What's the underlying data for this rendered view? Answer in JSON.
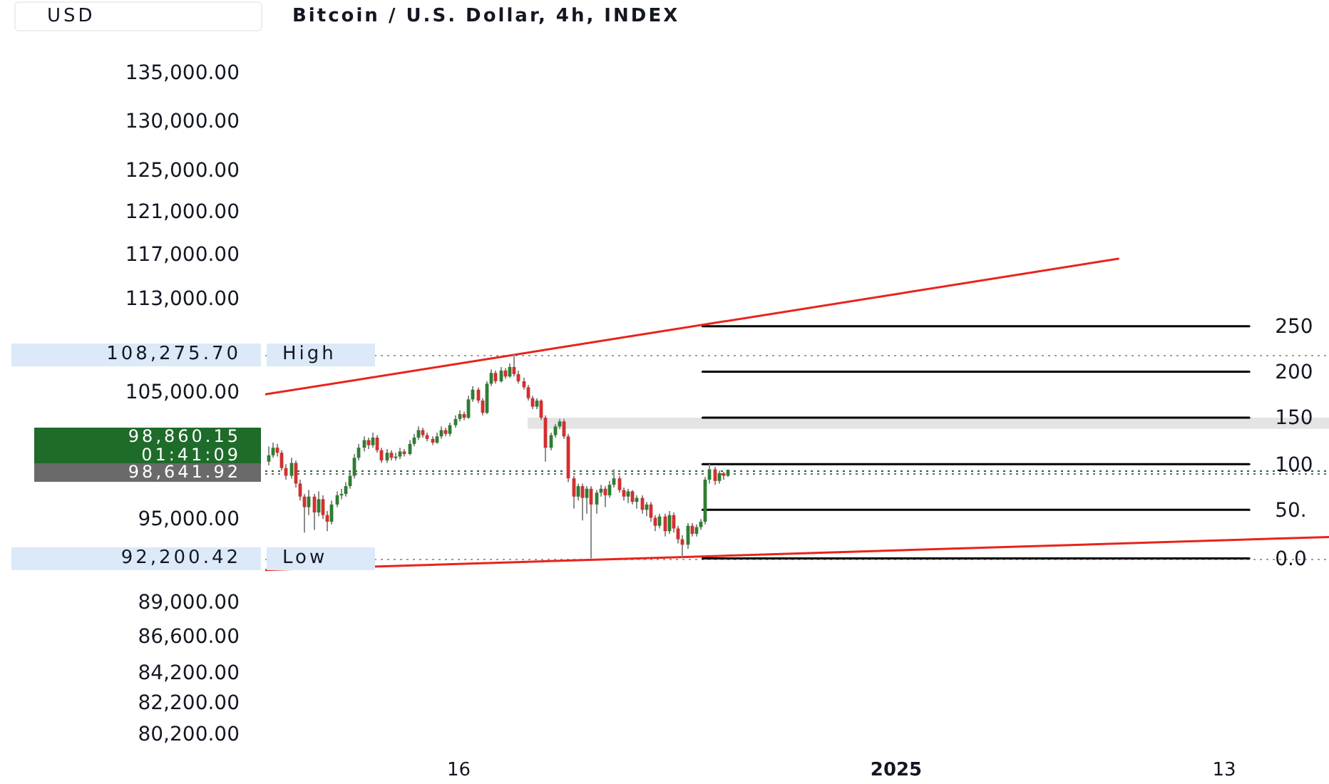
{
  "chart_data": {
    "type": "candlestick",
    "title": "Bitcoin / U.S. Dollar, 4h, INDEX",
    "ylabel": "USD",
    "log": true,
    "xlim": [
      "2024-12-08T22:00",
      "2025-01-16T20:00"
    ],
    "xticks": [
      {
        "value": "2024-12-16",
        "label": "16"
      },
      {
        "value": "2025-01-01",
        "label": "2025"
      },
      {
        "value": "2025-01-13",
        "label": "13"
      }
    ],
    "ylim": [
      80200,
      135000
    ],
    "yticks": [
      {
        "value": 80200,
        "label": "80,200.00"
      },
      {
        "value": 82200,
        "label": "82,200.00"
      },
      {
        "value": 84200,
        "label": "84,200.00"
      },
      {
        "value": 86600,
        "label": "86,600.00"
      },
      {
        "value": 89000,
        "label": "89,000.00"
      },
      {
        "value": 95000,
        "label": "95,000.00"
      },
      {
        "value": 105000,
        "label": "105,000.00"
      },
      {
        "value": 113000,
        "label": "113,000.00"
      },
      {
        "value": 117000,
        "label": "117,000.00"
      },
      {
        "value": 121000,
        "label": "121,000.00"
      },
      {
        "value": 125000,
        "label": "125,000.00"
      },
      {
        "value": 130000,
        "label": "130,000.00"
      },
      {
        "value": 135000,
        "label": "135,000.00"
      }
    ],
    "x": [
      "2024-12-09T00:00",
      "2024-12-09T04:00",
      "2024-12-09T08:00",
      "2024-12-09T12:00",
      "2024-12-09T16:00",
      "2024-12-09T20:00",
      "2024-12-10T00:00",
      "2024-12-10T04:00",
      "2024-12-10T08:00",
      "2024-12-10T12:00",
      "2024-12-10T16:00",
      "2024-12-10T20:00",
      "2024-12-11T00:00",
      "2024-12-11T04:00",
      "2024-12-11T08:00",
      "2024-12-11T12:00",
      "2024-12-11T16:00",
      "2024-12-11T20:00",
      "2024-12-12T00:00",
      "2024-12-12T04:00",
      "2024-12-12T08:00",
      "2024-12-12T12:00",
      "2024-12-12T16:00",
      "2024-12-12T20:00",
      "2024-12-13T00:00",
      "2024-12-13T04:00",
      "2024-12-13T08:00",
      "2024-12-13T12:00",
      "2024-12-13T16:00",
      "2024-12-13T20:00",
      "2024-12-14T00:00",
      "2024-12-14T04:00",
      "2024-12-14T08:00",
      "2024-12-14T12:00",
      "2024-12-14T16:00",
      "2024-12-14T20:00",
      "2024-12-15T00:00",
      "2024-12-15T04:00",
      "2024-12-15T08:00",
      "2024-12-15T12:00",
      "2024-12-15T16:00",
      "2024-12-15T20:00",
      "2024-12-16T00:00",
      "2024-12-16T04:00",
      "2024-12-16T08:00",
      "2024-12-16T12:00",
      "2024-12-16T16:00",
      "2024-12-16T20:00",
      "2024-12-17T00:00",
      "2024-12-17T04:00",
      "2024-12-17T08:00",
      "2024-12-17T12:00",
      "2024-12-17T16:00",
      "2024-12-17T20:00",
      "2024-12-18T00:00",
      "2024-12-18T04:00",
      "2024-12-18T08:00",
      "2024-12-18T12:00",
      "2024-12-18T16:00",
      "2024-12-18T20:00",
      "2024-12-19T00:00",
      "2024-12-19T04:00",
      "2024-12-19T08:00",
      "2024-12-19T12:00",
      "2024-12-19T16:00",
      "2024-12-19T20:00",
      "2024-12-20T00:00",
      "2024-12-20T04:00",
      "2024-12-20T08:00",
      "2024-12-20T12:00",
      "2024-12-20T16:00",
      "2024-12-20T20:00",
      "2024-12-21T00:00",
      "2024-12-21T04:00",
      "2024-12-21T08:00",
      "2024-12-21T12:00",
      "2024-12-21T16:00",
      "2024-12-21T20:00",
      "2024-12-22T00:00",
      "2024-12-22T04:00",
      "2024-12-22T08:00",
      "2024-12-22T12:00",
      "2024-12-22T16:00",
      "2024-12-22T20:00",
      "2024-12-23T00:00",
      "2024-12-23T04:00",
      "2024-12-23T08:00",
      "2024-12-23T12:00",
      "2024-12-23T16:00",
      "2024-12-23T20:00",
      "2024-12-24T00:00",
      "2024-12-24T04:00",
      "2024-12-24T08:00",
      "2024-12-24T12:00",
      "2024-12-24T16:00",
      "2024-12-24T20:00",
      "2024-12-25T00:00",
      "2024-12-25T04:00",
      "2024-12-25T08:00",
      "2024-12-25T12:00",
      "2024-12-25T16:00",
      "2024-12-25T20:00"
    ],
    "ohlc": [
      [
        99500,
        100700,
        99200,
        100000
      ],
      [
        100000,
        101000,
        99800,
        100600
      ],
      [
        100600,
        100900,
        99900,
        100200
      ],
      [
        100200,
        100400,
        98800,
        99000
      ],
      [
        99000,
        99300,
        98100,
        98400
      ],
      [
        98400,
        99800,
        98200,
        99400
      ],
      [
        99400,
        99600,
        97500,
        97800
      ],
      [
        97800,
        98100,
        96500,
        96800
      ],
      [
        96800,
        97000,
        94100,
        96000
      ],
      [
        96000,
        97300,
        95400,
        96800
      ],
      [
        96800,
        97000,
        94300,
        95600
      ],
      [
        95600,
        97200,
        95300,
        96600
      ],
      [
        96600,
        96900,
        95100,
        95400
      ],
      [
        95400,
        95700,
        94200,
        94900
      ],
      [
        94900,
        96500,
        94700,
        96200
      ],
      [
        96200,
        97200,
        96000,
        96900
      ],
      [
        96900,
        97400,
        96600,
        97000
      ],
      [
        97000,
        97900,
        96800,
        97600
      ],
      [
        97600,
        98700,
        97400,
        98400
      ],
      [
        98400,
        100100,
        98200,
        99800
      ],
      [
        99800,
        100900,
        99600,
        100600
      ],
      [
        100600,
        101500,
        100300,
        101200
      ],
      [
        101200,
        101400,
        100500,
        100800
      ],
      [
        100800,
        101800,
        100600,
        101400
      ],
      [
        101400,
        101600,
        100200,
        100400
      ],
      [
        100400,
        100600,
        99400,
        99600
      ],
      [
        99600,
        100500,
        99400,
        100200
      ],
      [
        100200,
        100400,
        99600,
        99800
      ],
      [
        99800,
        100200,
        99600,
        99900
      ],
      [
        99900,
        100600,
        99700,
        100300
      ],
      [
        100300,
        100500,
        99900,
        100100
      ],
      [
        100100,
        101200,
        100000,
        100900
      ],
      [
        100900,
        101700,
        100700,
        101400
      ],
      [
        101400,
        102300,
        101200,
        102000
      ],
      [
        102000,
        102200,
        101400,
        101600
      ],
      [
        101600,
        101800,
        101100,
        101300
      ],
      [
        101300,
        101500,
        100800,
        101000
      ],
      [
        101000,
        101800,
        100900,
        101500
      ],
      [
        101500,
        102300,
        101300,
        102000
      ],
      [
        102000,
        102200,
        101500,
        101700
      ],
      [
        101700,
        102600,
        101500,
        102400
      ],
      [
        102400,
        103200,
        102200,
        102900
      ],
      [
        102900,
        103600,
        102700,
        103300
      ],
      [
        103300,
        103500,
        102800,
        103000
      ],
      [
        103000,
        104800,
        102900,
        104500
      ],
      [
        104500,
        105600,
        104300,
        105300
      ],
      [
        105300,
        105500,
        104200,
        104400
      ],
      [
        104400,
        104600,
        103200,
        103400
      ],
      [
        103400,
        106000,
        103300,
        105800
      ],
      [
        105800,
        107000,
        105600,
        106700
      ],
      [
        106700,
        106900,
        105800,
        106000
      ],
      [
        106000,
        107200,
        105900,
        106900
      ],
      [
        106900,
        107100,
        106200,
        106400
      ],
      [
        106400,
        107500,
        106300,
        107200
      ],
      [
        107200,
        108275.7,
        106400,
        106600
      ],
      [
        106600,
        106900,
        105800,
        106000
      ],
      [
        106000,
        106300,
        105300,
        105500
      ],
      [
        105500,
        105700,
        104400,
        104600
      ],
      [
        104600,
        104800,
        103700,
        103900
      ],
      [
        103900,
        104600,
        103700,
        104400
      ],
      [
        104400,
        104500,
        102800,
        103000
      ],
      [
        103000,
        103200,
        99500,
        100600
      ],
      [
        100600,
        101800,
        100400,
        101600
      ],
      [
        101600,
        102500,
        101400,
        102300
      ],
      [
        102300,
        102900,
        102100,
        102700
      ],
      [
        102700,
        102900,
        101300,
        101500
      ],
      [
        101500,
        101700,
        97900,
        98200
      ],
      [
        98200,
        98400,
        95900,
        96800
      ],
      [
        96800,
        97800,
        96500,
        97600
      ],
      [
        97600,
        97800,
        95000,
        96700
      ],
      [
        96700,
        97600,
        95500,
        97400
      ],
      [
        97400,
        97600,
        92200.42,
        96200
      ],
      [
        96200,
        97300,
        95500,
        97100
      ],
      [
        97100,
        97700,
        96800,
        97400
      ],
      [
        97400,
        97600,
        96000,
        96900
      ],
      [
        96900,
        98000,
        96700,
        97700
      ],
      [
        97700,
        98900,
        97500,
        98200
      ],
      [
        98200,
        98400,
        97100,
        97300
      ],
      [
        97300,
        97500,
        96500,
        96800
      ],
      [
        96800,
        97400,
        96300,
        97200
      ],
      [
        97200,
        97300,
        96200,
        96400
      ],
      [
        96400,
        96900,
        95900,
        96700
      ],
      [
        96700,
        96900,
        95500,
        95800
      ],
      [
        95800,
        96400,
        95300,
        96200
      ],
      [
        96200,
        96400,
        94900,
        95200
      ],
      [
        95200,
        95400,
        94200,
        94600
      ],
      [
        94600,
        95500,
        94400,
        95300
      ],
      [
        95300,
        95500,
        93800,
        94200
      ],
      [
        94200,
        95700,
        94000,
        95400
      ],
      [
        95400,
        95600,
        94100,
        94400
      ],
      [
        94400,
        94600,
        93300,
        93600
      ],
      [
        93600,
        93900,
        92300,
        93200
      ],
      [
        93200,
        94800,
        92900,
        94600
      ],
      [
        94600,
        94800,
        93800,
        94000
      ],
      [
        94000,
        94700,
        93800,
        94500
      ],
      [
        94500,
        95100,
        94300,
        94900
      ],
      [
        94900,
        98300,
        94700,
        98100
      ],
      [
        98100,
        99300,
        97800,
        98900
      ],
      [
        98900,
        99100,
        97700,
        98000
      ],
      [
        98000,
        98800,
        97800,
        98600
      ],
      [
        98600,
        98700,
        98100,
        98400
      ],
      [
        98400,
        98900,
        98300,
        98860.15
      ]
    ],
    "colors": [
      "#2e7d32",
      "#2e7d32",
      "#d32f2f",
      "#d32f2f",
      "#d32f2f",
      "#2e7d32",
      "#d32f2f",
      "#d32f2f",
      "#d32f2f",
      "#2e7d32",
      "#d32f2f",
      "#2e7d32",
      "#d32f2f",
      "#d32f2f",
      "#2e7d32",
      "#2e7d32",
      "#2e7d32",
      "#2e7d32",
      "#2e7d32",
      "#2e7d32",
      "#2e7d32",
      "#2e7d32",
      "#d32f2f",
      "#2e7d32",
      "#d32f2f",
      "#d32f2f",
      "#2e7d32",
      "#d32f2f",
      "#2e7d32",
      "#2e7d32",
      "#d32f2f",
      "#2e7d32",
      "#2e7d32",
      "#2e7d32",
      "#d32f2f",
      "#d32f2f",
      "#d32f2f",
      "#2e7d32",
      "#2e7d32",
      "#d32f2f",
      "#2e7d32",
      "#2e7d32",
      "#2e7d32",
      "#d32f2f",
      "#2e7d32",
      "#2e7d32",
      "#d32f2f",
      "#d32f2f",
      "#2e7d32",
      "#2e7d32",
      "#d32f2f",
      "#2e7d32",
      "#d32f2f",
      "#2e7d32",
      "#d32f2f",
      "#d32f2f",
      "#d32f2f",
      "#d32f2f",
      "#d32f2f",
      "#2e7d32",
      "#d32f2f",
      "#d32f2f",
      "#2e7d32",
      "#2e7d32",
      "#2e7d32",
      "#d32f2f",
      "#d32f2f",
      "#d32f2f",
      "#2e7d32",
      "#d32f2f",
      "#2e7d32",
      "#d32f2f",
      "#2e7d32",
      "#2e7d32",
      "#d32f2f",
      "#2e7d32",
      "#2e7d32",
      "#d32f2f",
      "#d32f2f",
      "#2e7d32",
      "#d32f2f",
      "#2e7d32",
      "#d32f2f",
      "#2e7d32",
      "#d32f2f",
      "#d32f2f",
      "#2e7d32",
      "#d32f2f",
      "#2e7d32",
      "#d32f2f",
      "#d32f2f",
      "#d32f2f",
      "#2e7d32",
      "#d32f2f",
      "#2e7d32",
      "#2e7d32",
      "#2e7d32",
      "#2e7d32",
      "#d32f2f",
      "#2e7d32",
      "#d32f2f",
      "#2e7d32"
    ],
    "series": [
      {
        "type": "line",
        "color": "#e8231c",
        "x": [
          "2024-12-08T22:00",
          "2025-01-09T03:00"
        ],
        "values": [
          104910,
          116740
        ]
      },
      {
        "type": "line",
        "color": "#e8231c",
        "x": [
          "2024-12-08T22:00",
          "2025-01-16T20:00"
        ],
        "values": [
          91370,
          93770
        ]
      },
      {
        "type": "line",
        "color": "#000000",
        "x": [
          "2024-12-24T22:00",
          "2025-01-13T22:00"
        ],
        "values": [
          92200.42,
          92200.42
        ]
      },
      {
        "type": "line",
        "color": "#000000",
        "x": [
          "2024-12-24T22:00",
          "2025-01-13T22:00"
        ],
        "values": [
          95800,
          95800
        ]
      },
      {
        "type": "line",
        "color": "#000000",
        "x": [
          "2024-12-24T22:00",
          "2025-01-13T22:00"
        ],
        "values": [
          99300,
          99300
        ]
      },
      {
        "type": "line",
        "color": "#000000",
        "x": [
          "2024-12-24T22:00",
          "2025-01-13T22:00"
        ],
        "values": [
          103000,
          103000
        ]
      },
      {
        "type": "line",
        "color": "#000000",
        "x": [
          "2024-12-24T22:00",
          "2025-01-13T22:00"
        ],
        "values": [
          106800,
          106800
        ]
      },
      {
        "type": "line",
        "color": "#000000",
        "x": [
          "2024-12-24T22:00",
          "2025-01-13T22:00"
        ],
        "values": [
          110700,
          110700
        ]
      }
    ],
    "ref_lines": [
      {
        "axis": "y",
        "value": 108275.7,
        "label": "High",
        "color": "#9e9e9e",
        "line_style": "dotted"
      },
      {
        "axis": "y",
        "value": 92200.42,
        "label": "Low",
        "color": "#9e9e9e",
        "line_style": "dotted"
      },
      {
        "axis": "y",
        "value": 98641.92,
        "color": "#6a6a6a",
        "line_style": "dotted"
      },
      {
        "axis": "y",
        "value": 98860.15,
        "color": "#1e6b2a",
        "line_style": "dotted"
      }
    ],
    "bands": [
      {
        "axis": "y",
        "from": 102100,
        "to": 103000,
        "color": "#e4e4e4"
      }
    ],
    "annotations": [
      {
        "text": "0.0",
        "x": "2025-01-13T22:00",
        "y": 92200.42
      },
      {
        "text": "50.",
        "x": "2025-01-13T22:00",
        "y": 95800
      },
      {
        "text": "100",
        "x": "2025-01-13T22:00",
        "y": 99300
      },
      {
        "text": "150",
        "x": "2025-01-13T22:00",
        "y": 103000
      },
      {
        "text": "200",
        "x": "2025-01-13T22:00",
        "y": 106800
      },
      {
        "text": "250",
        "x": "2025-01-13T22:00",
        "y": 110700
      },
      "108,275.70",
      "92,200.42",
      "98,641.92",
      "98,860.15",
      "01:41:09"
    ]
  }
}
